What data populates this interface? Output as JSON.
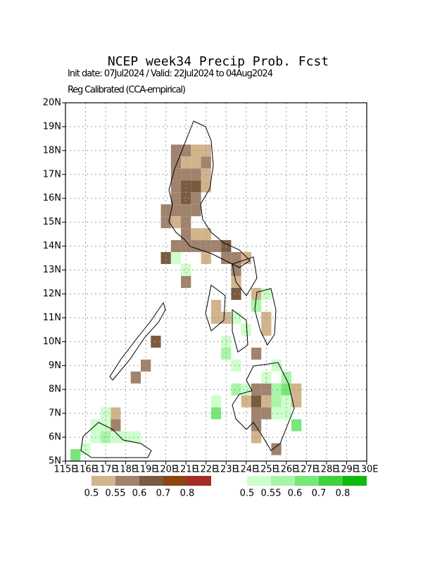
{
  "chart_data": {
    "type": "grid-map",
    "title": "NCEP week34 Precip Prob. Fcst",
    "subtitle": "Init date: 07Jul2024 / Valid: 22Jul2024 to 04Aug2024",
    "note": "Reg Calibrated (CCA-empirical)",
    "xlim": [
      115,
      130
    ],
    "ylim": [
      5,
      20
    ],
    "xticks": [
      {
        "value": 115,
        "label": "115E"
      },
      {
        "value": 116,
        "label": "116E"
      },
      {
        "value": 117,
        "label": "117E"
      },
      {
        "value": 118,
        "label": "118E"
      },
      {
        "value": 119,
        "label": "119E"
      },
      {
        "value": 120,
        "label": "120E"
      },
      {
        "value": 121,
        "label": "121E"
      },
      {
        "value": 122,
        "label": "122E"
      },
      {
        "value": 123,
        "label": "123E"
      },
      {
        "value": 124,
        "label": "124E"
      },
      {
        "value": 125,
        "label": "125E"
      },
      {
        "value": 126,
        "label": "126E"
      },
      {
        "value": 127,
        "label": "127E"
      },
      {
        "value": 128,
        "label": "128E"
      },
      {
        "value": 129,
        "label": "129E"
      },
      {
        "value": 130,
        "label": "130E"
      }
    ],
    "yticks": [
      {
        "value": 5,
        "label": "5N"
      },
      {
        "value": 6,
        "label": "6N"
      },
      {
        "value": 7,
        "label": "7N"
      },
      {
        "value": 8,
        "label": "8N"
      },
      {
        "value": 9,
        "label": "9N"
      },
      {
        "value": 10,
        "label": "10N"
      },
      {
        "value": 11,
        "label": "11N"
      },
      {
        "value": 12,
        "label": "12N"
      },
      {
        "value": 13,
        "label": "13N"
      },
      {
        "value": 14,
        "label": "14N"
      },
      {
        "value": 15,
        "label": "15N"
      },
      {
        "value": 16,
        "label": "16N"
      },
      {
        "value": 17,
        "label": "17N"
      },
      {
        "value": 18,
        "label": "18N"
      },
      {
        "value": 19,
        "label": "19N"
      },
      {
        "value": 20,
        "label": "20N"
      }
    ],
    "grid": true,
    "cell_size": 0.5,
    "layers": [
      {
        "levels": [
          0.5,
          0.55,
          0.6,
          0.7,
          0.8
        ],
        "colors": [
          "#d2b48c",
          "#a0826d",
          "#7a5a40",
          "#8b4513",
          "#a52a2a"
        ],
        "cells": [
          [
            120.25,
            17.75,
            0.55
          ],
          [
            120.75,
            17.75,
            0.55
          ],
          [
            121.25,
            17.75,
            0.5
          ],
          [
            121.75,
            17.75,
            0.5
          ],
          [
            120.25,
            17.25,
            0.55
          ],
          [
            120.75,
            17.25,
            0.5
          ],
          [
            121.25,
            17.25,
            0.5
          ],
          [
            121.75,
            17.25,
            0.55
          ],
          [
            120.25,
            16.75,
            0.55
          ],
          [
            120.75,
            16.75,
            0.55
          ],
          [
            121.25,
            16.75,
            0.55
          ],
          [
            121.75,
            16.75,
            0.5
          ],
          [
            120.25,
            16.25,
            0.55
          ],
          [
            120.75,
            16.25,
            0.6
          ],
          [
            121.25,
            16.25,
            0.6
          ],
          [
            121.75,
            16.25,
            0.5
          ],
          [
            120.25,
            15.75,
            0.55
          ],
          [
            120.75,
            15.75,
            0.6
          ],
          [
            121.25,
            15.75,
            0.55
          ],
          [
            119.75,
            15.25,
            0.55
          ],
          [
            120.25,
            15.25,
            0.55
          ],
          [
            120.75,
            15.25,
            0.55
          ],
          [
            121.25,
            15.25,
            0.55
          ],
          [
            119.75,
            14.75,
            0.55
          ],
          [
            120.25,
            14.75,
            0.5
          ],
          [
            120.75,
            14.75,
            0.55
          ],
          [
            120.75,
            14.25,
            0.55
          ],
          [
            121.25,
            14.25,
            0.5
          ],
          [
            121.75,
            14.25,
            0.5
          ],
          [
            120.25,
            13.75,
            0.55
          ],
          [
            120.75,
            13.75,
            0.55
          ],
          [
            121.25,
            13.75,
            0.55
          ],
          [
            121.75,
            13.75,
            0.55
          ],
          [
            122.25,
            13.75,
            0.55
          ],
          [
            122.75,
            13.75,
            0.6
          ],
          [
            119.75,
            13.25,
            0.6
          ],
          [
            121.75,
            13.25,
            0.5
          ],
          [
            122.75,
            13.25,
            0.55
          ],
          [
            123.25,
            13.25,
            0.55
          ],
          [
            123.75,
            13.25,
            0.5
          ],
          [
            123.25,
            12.75,
            0.55
          ],
          [
            120.75,
            12.25,
            0.55
          ],
          [
            123.25,
            12.25,
            0.5
          ],
          [
            123.25,
            11.75,
            0.6
          ],
          [
            124.25,
            11.75,
            0.5
          ],
          [
            122.25,
            11.25,
            0.5
          ],
          [
            122.75,
            10.75,
            0.5
          ],
          [
            122.25,
            10.75,
            0.5
          ],
          [
            124.75,
            10.75,
            0.5
          ],
          [
            124.75,
            10.25,
            0.5
          ],
          [
            119.25,
            9.75,
            0.6
          ],
          [
            124.25,
            9.25,
            0.55
          ],
          [
            118.75,
            8.75,
            0.55
          ],
          [
            118.25,
            8.25,
            0.55
          ],
          [
            124.25,
            7.75,
            0.55
          ],
          [
            124.75,
            7.75,
            0.55
          ],
          [
            125.25,
            7.75,
            0.5
          ],
          [
            126.25,
            7.75,
            0.5
          ],
          [
            123.75,
            7.25,
            0.5
          ],
          [
            124.25,
            7.25,
            0.6
          ],
          [
            124.75,
            7.25,
            0.5
          ],
          [
            126.25,
            7.25,
            0.5
          ],
          [
            124.25,
            6.75,
            0.55
          ],
          [
            124.75,
            6.75,
            0.55
          ],
          [
            124.25,
            6.25,
            0.55
          ],
          [
            124.25,
            5.75,
            0.5
          ],
          [
            125.25,
            5.25,
            0.55
          ],
          [
            117.25,
            6.75,
            0.5
          ],
          [
            117.25,
            6.25,
            0.55
          ]
        ]
      },
      {
        "levels": [
          0.5,
          0.55,
          0.6,
          0.7,
          0.8
        ],
        "colors": [
          "#ccffcc",
          "#a8f5a8",
          "#78e678",
          "#40d040",
          "#10b810"
        ],
        "cells": [
          [
            120.25,
            13.25,
            0.5
          ],
          [
            120.75,
            12.75,
            0.5
          ],
          [
            124.75,
            11.75,
            0.5
          ],
          [
            124.25,
            11.25,
            0.55
          ],
          [
            123.25,
            10.75,
            0.5
          ],
          [
            123.75,
            10.25,
            0.5
          ],
          [
            122.75,
            9.75,
            0.5
          ],
          [
            122.75,
            9.25,
            0.55
          ],
          [
            123.25,
            8.75,
            0.5
          ],
          [
            125.25,
            8.75,
            0.5
          ],
          [
            124.75,
            8.25,
            0.5
          ],
          [
            125.75,
            8.25,
            0.55
          ],
          [
            123.25,
            7.75,
            0.55
          ],
          [
            123.75,
            7.75,
            0.5
          ],
          [
            125.25,
            7.75,
            0.55
          ],
          [
            125.75,
            7.75,
            0.6
          ],
          [
            122.25,
            7.25,
            0.5
          ],
          [
            125.25,
            7.25,
            0.55
          ],
          [
            125.75,
            7.25,
            0.5
          ],
          [
            122.25,
            6.75,
            0.6
          ],
          [
            125.25,
            6.75,
            0.5
          ],
          [
            125.75,
            6.75,
            0.5
          ],
          [
            126.25,
            6.25,
            0.6
          ],
          [
            116.75,
            6.75,
            0.5
          ],
          [
            116.25,
            6.25,
            0.5
          ],
          [
            116.75,
            6.25,
            0.5
          ],
          [
            116.25,
            5.75,
            0.5
          ],
          [
            116.75,
            5.75,
            0.55
          ],
          [
            117.25,
            5.75,
            0.5
          ],
          [
            117.75,
            5.75,
            0.5
          ],
          [
            118.25,
            5.75,
            0.5
          ],
          [
            115.75,
            5.25,
            0.5
          ],
          [
            115.25,
            5.0,
            0.6
          ]
        ]
      }
    ]
  }
}
